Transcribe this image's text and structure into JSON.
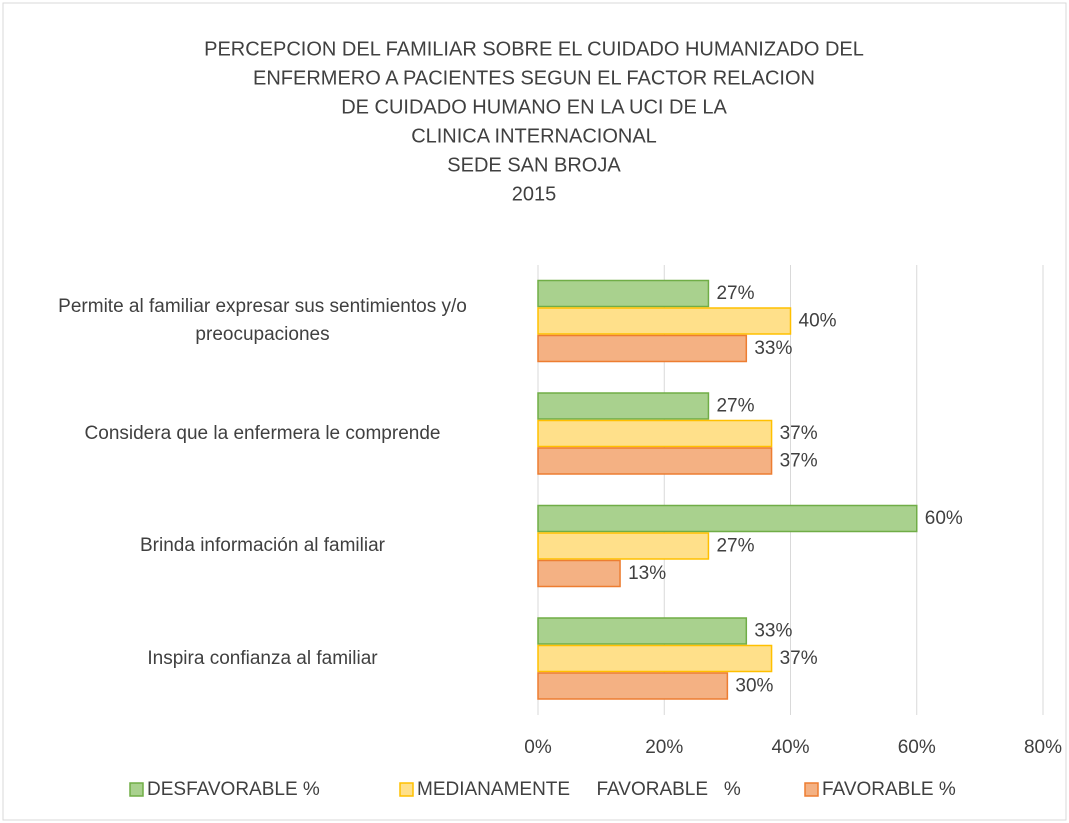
{
  "chart_data": {
    "type": "bar",
    "orientation": "horizontal",
    "title": [
      "PERCEPCION DEL FAMILIAR SOBRE EL CUIDADO HUMANIZADO DEL",
      "ENFERMERO A PACIENTES SEGUN EL FACTOR RELACION",
      "DE CUIDADO HUMANO EN LA UCI DE LA",
      "CLINICA INTERNACIONAL",
      "SEDE SAN BROJA",
      "2015"
    ],
    "categories": [
      "Permite al familiar expresar sus sentimientos y/o preocupaciones",
      "Considera que la enfermera le comprende",
      "Brinda información al familiar",
      "Inspira confianza al familiar"
    ],
    "series": [
      {
        "name": "DESFAVORABLE %",
        "color": "#a9d18e",
        "edge": "#70ad47",
        "values": [
          27,
          27,
          60,
          33
        ],
        "value_labels": [
          "27%",
          "27%",
          "60%",
          "33%"
        ]
      },
      {
        "name": "MEDIANAMENTE     FAVORABLE   %",
        "color": "#ffe08a",
        "edge": "#ffc000",
        "values": [
          40,
          37,
          27,
          37
        ],
        "value_labels": [
          "40%",
          "37%",
          "27%",
          "37%"
        ]
      },
      {
        "name": "FAVORABLE %",
        "color": "#f4b183",
        "edge": "#ed7d31",
        "values": [
          33,
          37,
          13,
          30
        ],
        "value_labels": [
          "33%",
          "37%",
          "13%",
          "30%"
        ]
      }
    ],
    "xlim": [
      0,
      80
    ],
    "xticks": [
      {
        "value": 0,
        "label": "0%"
      },
      {
        "value": 20,
        "label": "20%"
      },
      {
        "value": 40,
        "label": "40%"
      },
      {
        "value": 60,
        "label": "60%"
      },
      {
        "value": 80,
        "label": "80%"
      }
    ],
    "grid": true,
    "legend": "bottom"
  }
}
